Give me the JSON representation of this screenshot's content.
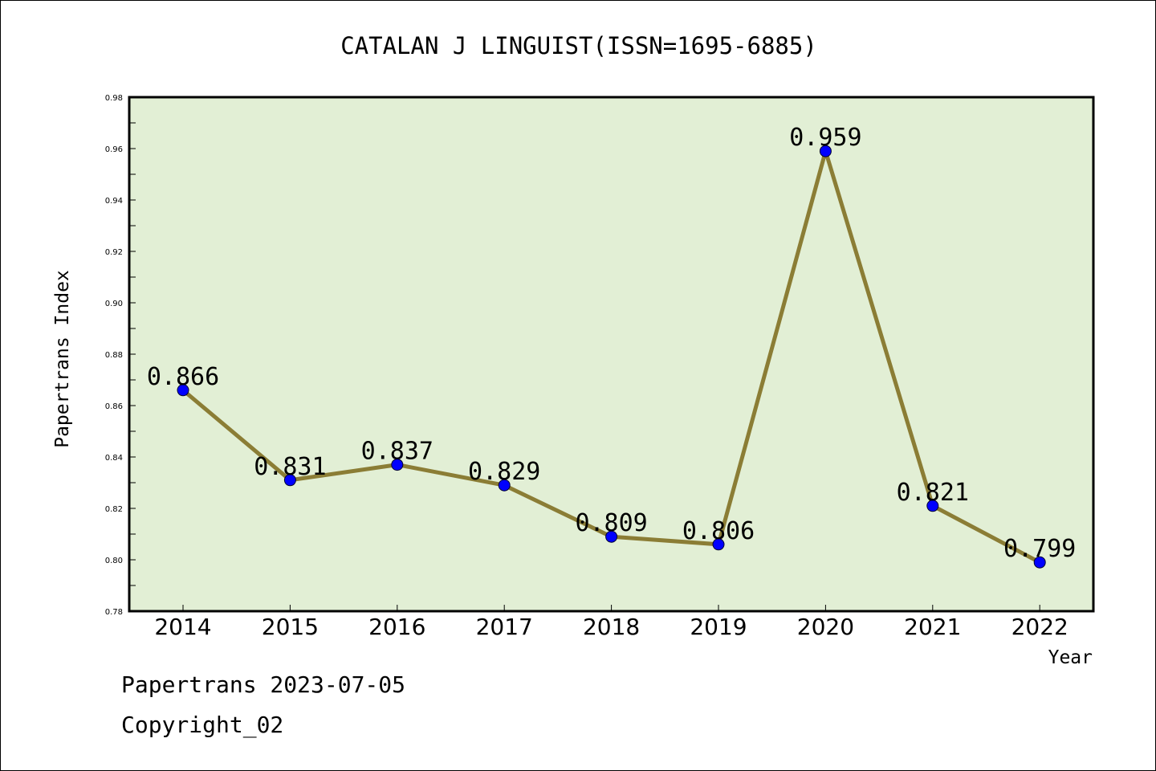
{
  "chart_data": {
    "type": "line",
    "title": "CATALAN J LINGUIST(ISSN=1695-6885)",
    "xlabel": "Year",
    "ylabel": "Papertrans Index",
    "categories": [
      "2014",
      "2015",
      "2016",
      "2017",
      "2018",
      "2019",
      "2020",
      "2021",
      "2022"
    ],
    "series": [
      {
        "values": [
          0.866,
          0.831,
          0.837,
          0.829,
          0.809,
          0.806,
          0.959,
          0.821,
          0.799
        ],
        "labels": [
          "0.866",
          "0.831",
          "0.837",
          "0.829",
          "0.809",
          "0.806",
          "0.959",
          "0.821",
          "0.799"
        ]
      }
    ],
    "ylim": [
      0.78,
      0.98
    ],
    "yticks": [
      "0.78",
      "0.80",
      "0.82",
      "0.84",
      "0.86",
      "0.88",
      "0.90",
      "0.92",
      "0.94",
      "0.96",
      "0.98"
    ],
    "grid": false,
    "legend": "none",
    "colors": {
      "plot_background": "#e2efd5",
      "line": "#8b7d35",
      "marker": "#0000ff"
    }
  },
  "footer": {
    "date_text": "Papertrans 2023-07-05",
    "copyright_text": "Copyright_02"
  }
}
